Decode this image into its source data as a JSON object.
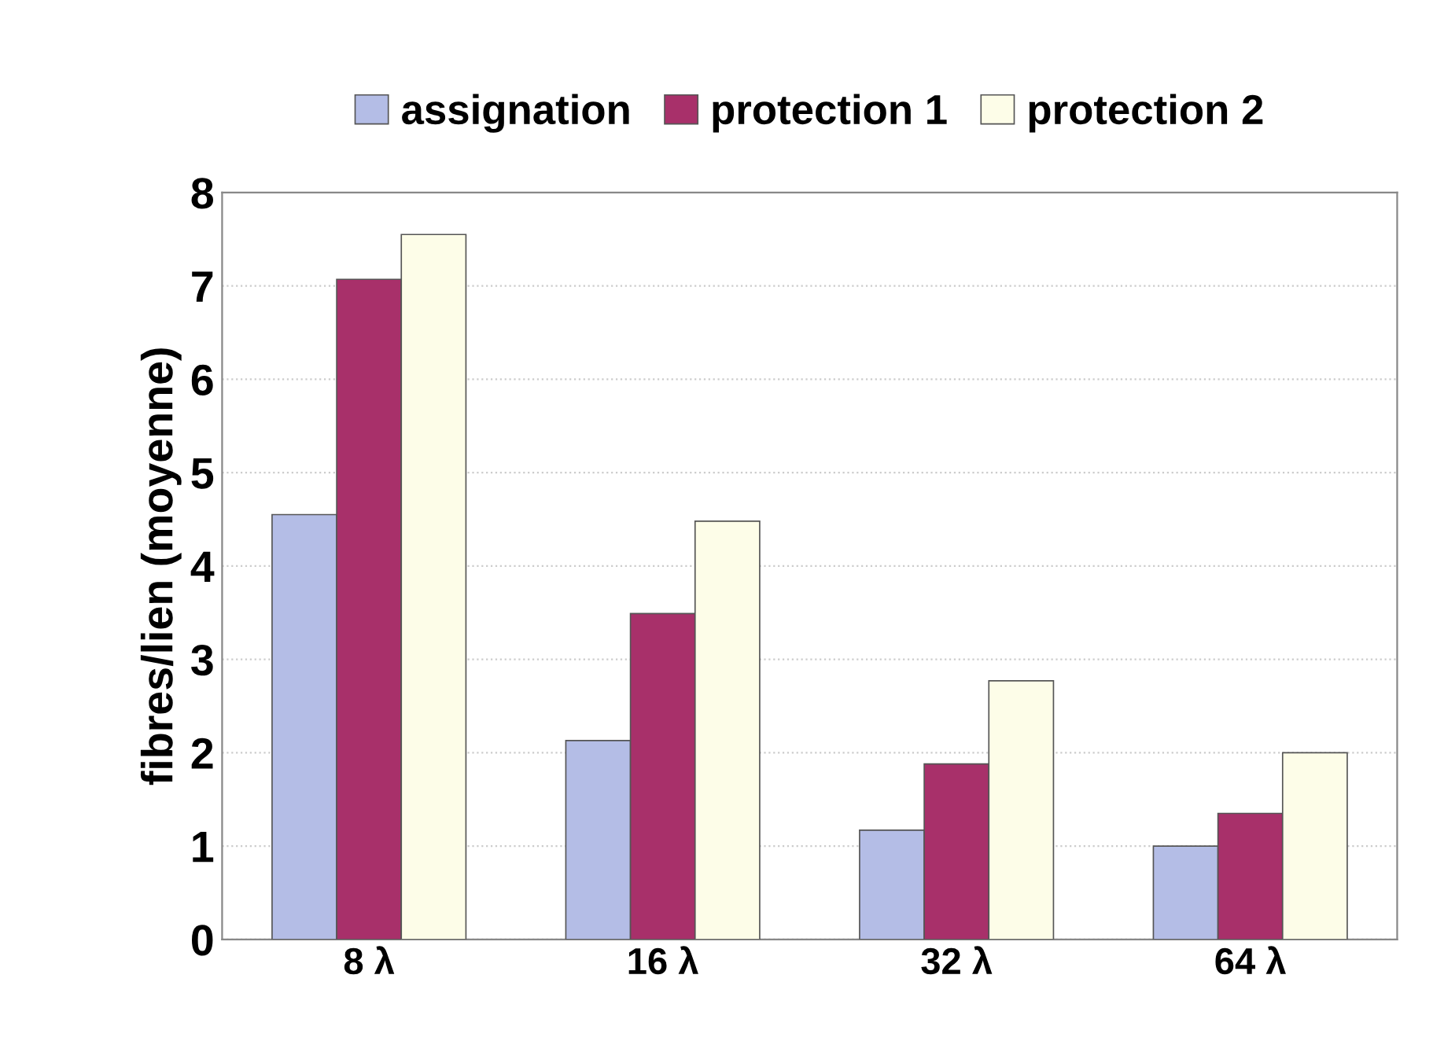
{
  "chart_data": {
    "type": "bar",
    "ylabel": "fibres/lien (moyenne)",
    "categories": [
      "8 λ",
      "16 λ",
      "32 λ",
      "64 λ"
    ],
    "series": [
      {
        "name": "assignation",
        "color": "#b4bde6",
        "values": [
          4.55,
          2.13,
          1.17,
          1.0
        ]
      },
      {
        "name": "protection 1",
        "color": "#a8306a",
        "values": [
          7.07,
          3.49,
          1.88,
          1.35
        ]
      },
      {
        "name": "protection 2",
        "color": "#fdfde8",
        "values": [
          7.55,
          4.48,
          2.77,
          2.0
        ]
      }
    ],
    "ylim": [
      0,
      8
    ],
    "yticks": [
      0,
      1,
      2,
      3,
      4,
      5,
      6,
      7,
      8
    ],
    "grid": "y",
    "legend": "top"
  }
}
